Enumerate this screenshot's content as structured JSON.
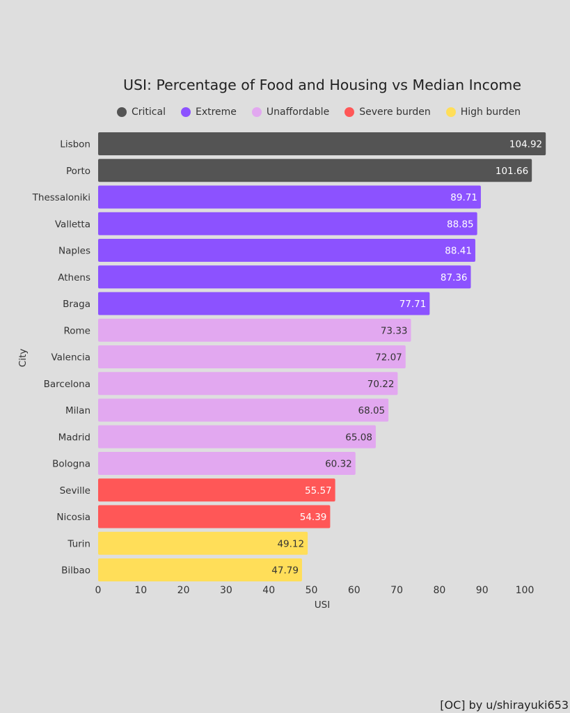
{
  "chart_data": {
    "type": "bar",
    "orientation": "horizontal",
    "title": "USI: Percentage of Food and Housing vs Median Income",
    "xlabel": "USI",
    "ylabel": "City",
    "xlim": [
      0,
      106
    ],
    "xticks": [
      0,
      10,
      20,
      30,
      40,
      50,
      60,
      70,
      80,
      90,
      100
    ],
    "grid": false,
    "legend_placement": "top",
    "legend": [
      {
        "name": "Critical",
        "color": "#545454"
      },
      {
        "name": "Extreme",
        "color": "#8c52ff"
      },
      {
        "name": "Unaffordable",
        "color": "#e2a8f0"
      },
      {
        "name": "Severe burden",
        "color": "#ff5757"
      },
      {
        "name": "High burden",
        "color": "#ffde59"
      }
    ],
    "categories": [
      "Lisbon",
      "Porto",
      "Thessaloniki",
      "Valletta",
      "Naples",
      "Athens",
      "Braga",
      "Rome",
      "Valencia",
      "Barcelona",
      "Milan",
      "Madrid",
      "Bologna",
      "Seville",
      "Nicosia",
      "Turin",
      "Bilbao"
    ],
    "values": [
      104.92,
      101.66,
      89.71,
      88.85,
      88.41,
      87.36,
      77.71,
      73.33,
      72.07,
      70.22,
      68.05,
      65.08,
      60.32,
      55.57,
      54.39,
      49.12,
      47.79
    ],
    "groups": [
      "Critical",
      "Critical",
      "Extreme",
      "Extreme",
      "Extreme",
      "Extreme",
      "Extreme",
      "Unaffordable",
      "Unaffordable",
      "Unaffordable",
      "Unaffordable",
      "Unaffordable",
      "Unaffordable",
      "Severe burden",
      "Severe burden",
      "High burden",
      "High burden"
    ]
  },
  "credit": "[OC] by u/shirayuki653"
}
